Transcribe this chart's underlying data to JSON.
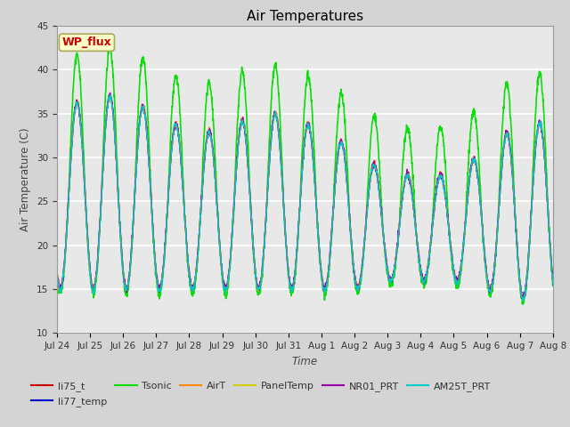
{
  "title": "Air Temperatures",
  "ylabel": "Air Temperature (C)",
  "xlabel": "Time",
  "ylim": [
    10,
    45
  ],
  "xlim": [
    0,
    15
  ],
  "plot_bg_color": "#e8e8e8",
  "fig_bg_color": "#d4d4d4",
  "grid_color": "#ffffff",
  "series_order": [
    "li75_t",
    "li77_temp",
    "Tsonic",
    "AirT",
    "PanelTemp",
    "NR01_PRT",
    "AM25T_PRT"
  ],
  "series": {
    "li75_t": {
      "color": "#cc0000",
      "lw": 1.0
    },
    "li77_temp": {
      "color": "#0000cc",
      "lw": 1.0
    },
    "Tsonic": {
      "color": "#00dd00",
      "lw": 1.2
    },
    "AirT": {
      "color": "#ff8800",
      "lw": 1.0
    },
    "PanelTemp": {
      "color": "#cccc00",
      "lw": 1.0
    },
    "NR01_PRT": {
      "color": "#9900aa",
      "lw": 1.0
    },
    "AM25T_PRT": {
      "color": "#00cccc",
      "lw": 1.0
    }
  },
  "annotation_text": "WP_flux",
  "annotation_color": "#cc0000",
  "annotation_bg": "#ffffcc",
  "annotation_border": "#aaaa55",
  "title_fontsize": 11,
  "tick_fontsize": 7.5,
  "label_fontsize": 8.5,
  "legend_fontsize": 8,
  "yticks": [
    10,
    15,
    20,
    25,
    30,
    35,
    40,
    45
  ],
  "n_days": 15,
  "tick_day_labels": [
    "Jul 24",
    "Jul 25",
    "Jul 26",
    "Jul 27",
    "Jul 28",
    "Jul 29",
    "Jul 30",
    "Jul 31",
    "Aug 1",
    "Aug 2",
    "Aug 3",
    "Aug 4",
    "Aug 5",
    "Aug 6",
    "Aug 7",
    "Aug 8"
  ]
}
